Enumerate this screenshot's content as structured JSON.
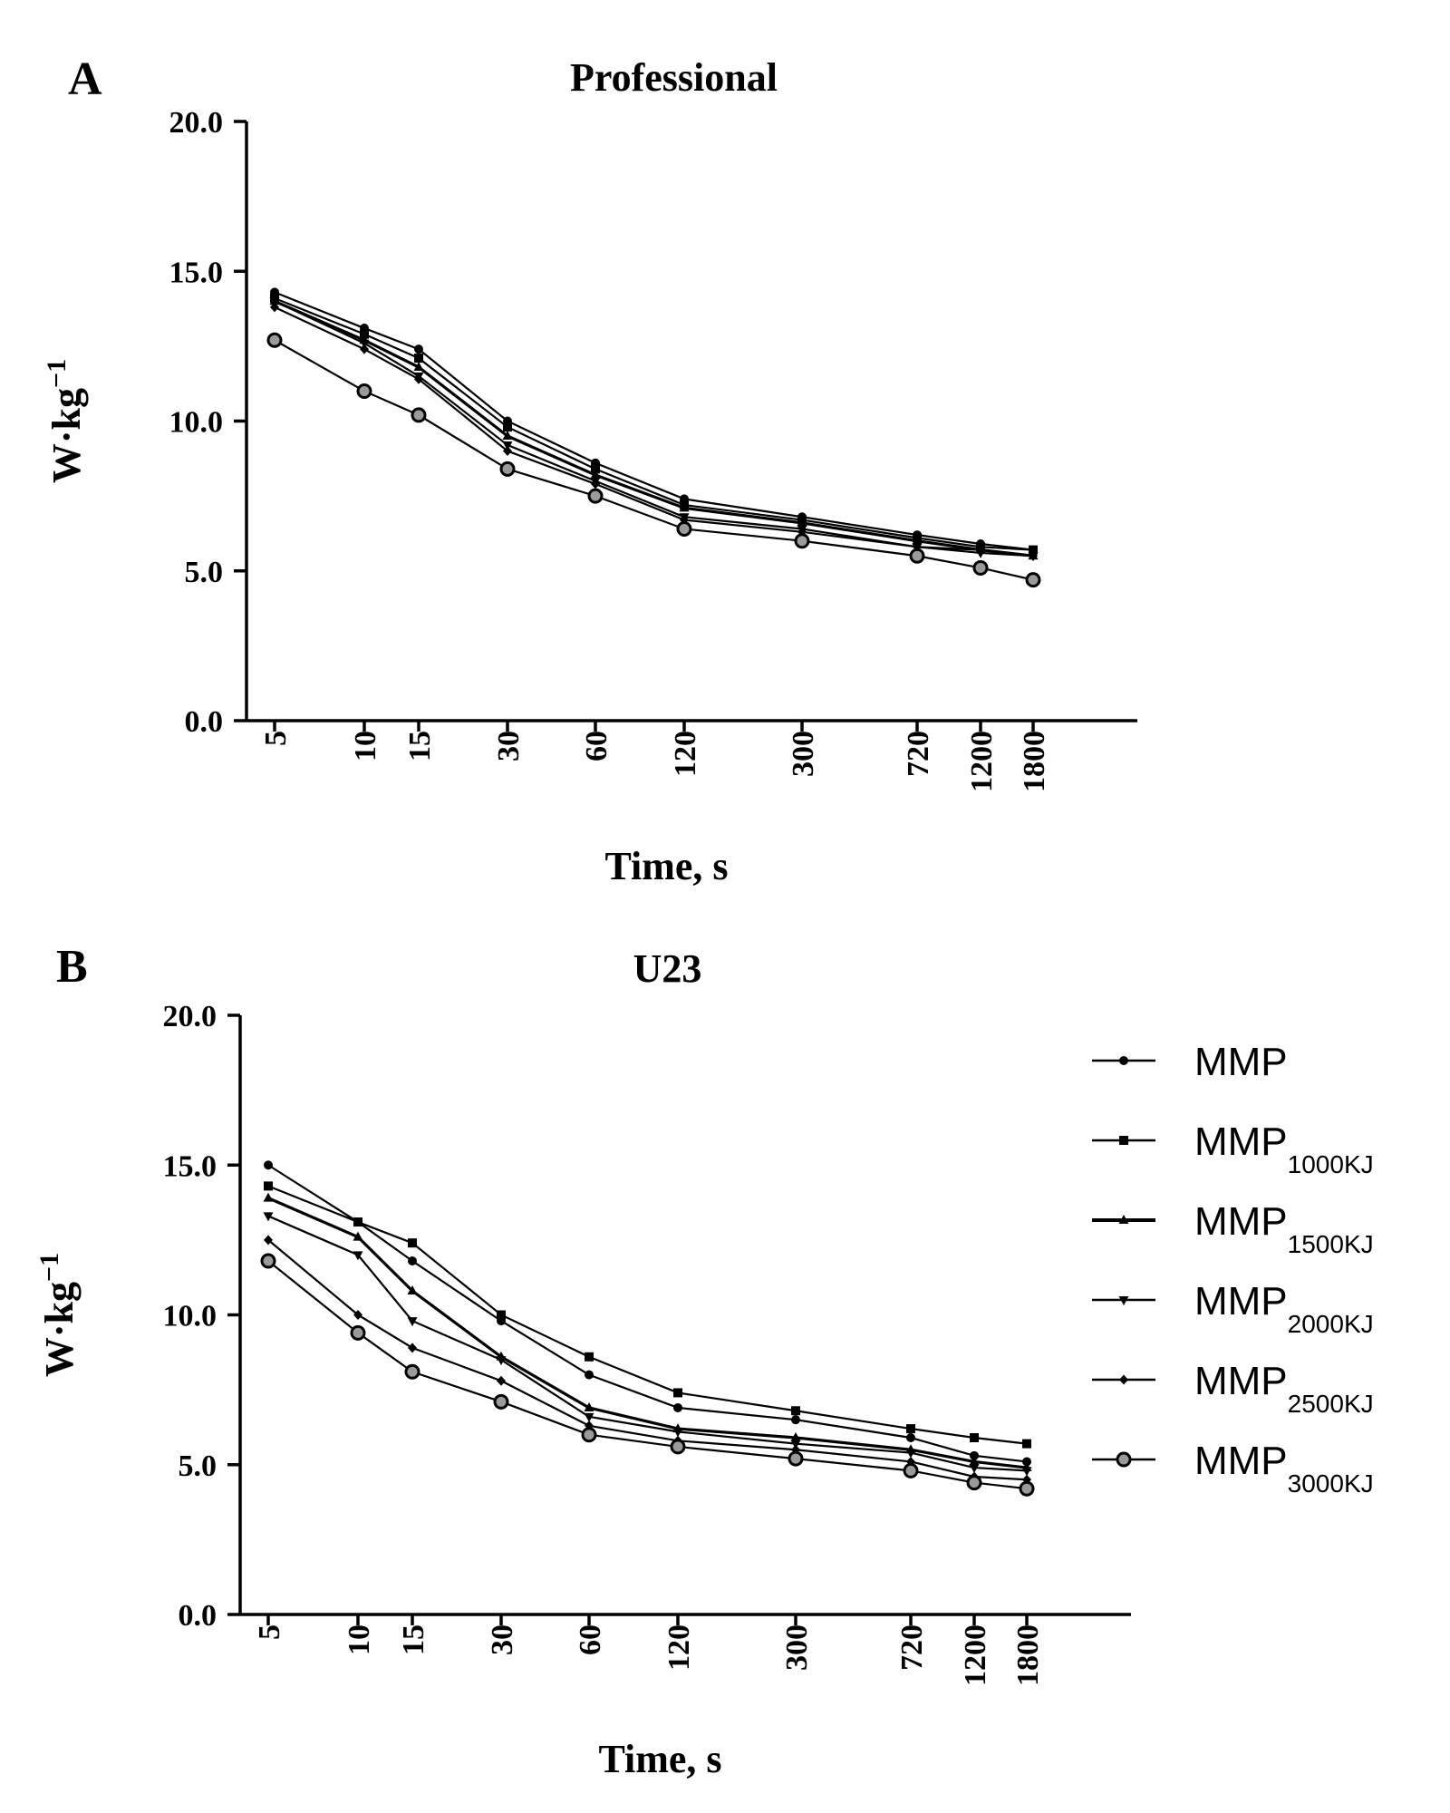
{
  "chart_data": [
    {
      "type": "line",
      "panel": "A",
      "title": "Professional",
      "xlabel": "Time, s",
      "ylabel": "W·kg",
      "ylabel_sup": "−1",
      "x": [
        "5",
        "10",
        "15",
        "30",
        "60",
        "120",
        "300",
        "720",
        "1200",
        "1800"
      ],
      "ylim": [
        0,
        20
      ],
      "yticks": [
        "0.0",
        "5.0",
        "10.0",
        "15.0",
        "20.0"
      ],
      "series": [
        {
          "values": [
            14.3,
            13.1,
            12.4,
            10.0,
            8.6,
            7.4,
            6.8,
            6.2,
            5.9,
            5.7
          ],
          "marker": "dot"
        },
        {
          "values": [
            14.1,
            12.9,
            12.1,
            9.8,
            8.4,
            7.2,
            6.7,
            6.1,
            5.8,
            5.7
          ],
          "marker": "square"
        },
        {
          "values": [
            14.0,
            12.7,
            11.8,
            9.5,
            8.2,
            7.1,
            6.6,
            6.0,
            5.7,
            5.5
          ],
          "marker": "triangle"
        },
        {
          "values": [
            14.0,
            12.6,
            11.5,
            9.2,
            8.0,
            6.8,
            6.4,
            5.8,
            5.6,
            5.5
          ],
          "marker": "down-triangle"
        },
        {
          "values": [
            13.8,
            12.4,
            11.4,
            9.0,
            7.9,
            6.7,
            6.3,
            5.8,
            5.7,
            5.5
          ],
          "marker": "diamond"
        },
        {
          "values": [
            12.7,
            11.0,
            10.2,
            8.4,
            7.5,
            6.4,
            6.0,
            5.5,
            5.1,
            4.7
          ],
          "marker": "circle"
        }
      ]
    },
    {
      "type": "line",
      "panel": "B",
      "title": "U23",
      "xlabel": "Time, s",
      "ylabel": "W·kg",
      "ylabel_sup": "−1",
      "x": [
        "5",
        "10",
        "15",
        "30",
        "60",
        "120",
        "300",
        "720",
        "1200",
        "1800"
      ],
      "ylim": [
        0,
        20
      ],
      "yticks": [
        "0.0",
        "5.0",
        "10.0",
        "15.0",
        "20.0"
      ],
      "series": [
        {
          "values": [
            15.0,
            13.1,
            11.8,
            9.8,
            8.0,
            6.9,
            6.5,
            5.9,
            5.3,
            5.1
          ],
          "marker": "dot"
        },
        {
          "values": [
            14.3,
            13.1,
            12.4,
            10.0,
            8.6,
            7.4,
            6.8,
            6.2,
            5.9,
            5.7
          ],
          "marker": "square"
        },
        {
          "values": [
            13.9,
            12.6,
            10.8,
            8.6,
            6.9,
            6.2,
            5.9,
            5.5,
            5.1,
            4.9
          ],
          "marker": "triangle"
        },
        {
          "values": [
            13.3,
            12.0,
            9.8,
            8.5,
            6.6,
            6.1,
            5.7,
            5.4,
            4.9,
            4.8
          ],
          "marker": "down-triangle"
        },
        {
          "values": [
            12.5,
            10.0,
            8.9,
            7.8,
            6.3,
            5.8,
            5.5,
            5.1,
            4.6,
            4.5
          ],
          "marker": "diamond"
        },
        {
          "values": [
            11.8,
            9.4,
            8.1,
            7.1,
            6.0,
            5.6,
            5.2,
            4.8,
            4.4,
            4.2
          ],
          "marker": "circle"
        }
      ]
    }
  ],
  "legend": [
    {
      "main": "MMP",
      "sub": "",
      "marker": "dot"
    },
    {
      "main": "MMP",
      "sub": "1000KJ",
      "marker": "square"
    },
    {
      "main": "MMP",
      "sub": "1500KJ",
      "marker": "triangle"
    },
    {
      "main": "MMP",
      "sub": "2000KJ",
      "marker": "down-triangle"
    },
    {
      "main": "MMP",
      "sub": "2500KJ",
      "marker": "diamond"
    },
    {
      "main": "MMP",
      "sub": "3000KJ",
      "marker": "circle"
    }
  ],
  "style": {
    "line_color": "#000000",
    "background": "#ffffff"
  }
}
